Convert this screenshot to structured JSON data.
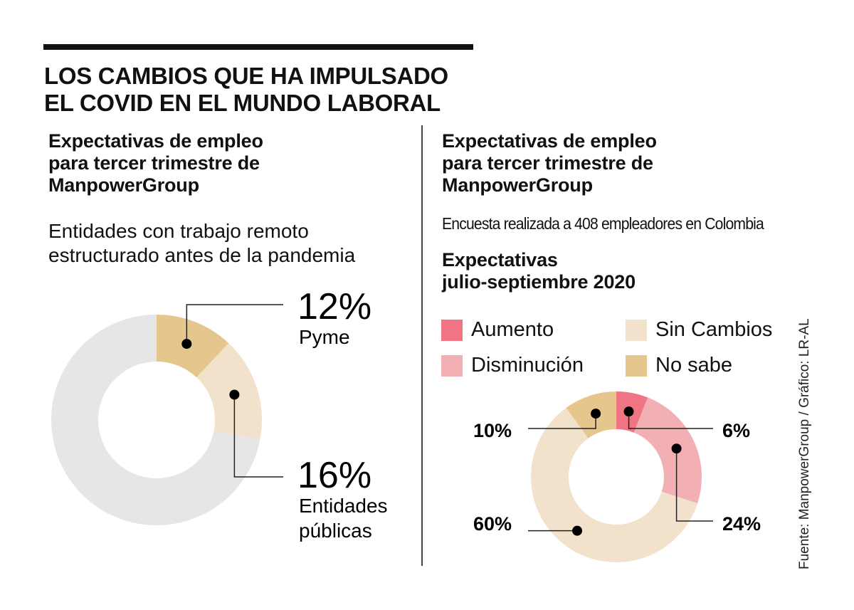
{
  "header": {
    "title_lines": [
      "LOS CAMBIOS QUE HA IMPULSADO",
      "EL COVID EN EL MUNDO LABORAL"
    ]
  },
  "left_panel": {
    "title_lines": [
      "Expectativas de empleo",
      "para tercer trimestre de",
      "ManpowerGroup"
    ],
    "description_lines": [
      "Entidades con trabajo remoto",
      "estructurado antes de la pandemia"
    ]
  },
  "right_panel": {
    "title_lines": [
      "Expectativas de empleo",
      "para tercer trimestre de",
      "ManpowerGroup"
    ],
    "description": "Encuesta realizada a 408 empleadores en Colombia",
    "chart_title_lines": [
      "Expectativas",
      "julio-septiembre 2020"
    ]
  },
  "source": "Fuente: ManpowerGroup / Gráfico: LR-AL",
  "chart_data": [
    {
      "type": "pie",
      "subtype": "donut",
      "title": "Entidades con trabajo remoto estructurado antes de la pandemia",
      "slices": [
        {
          "name": "Pyme",
          "value": 12,
          "label": "12%",
          "sublabel_lines": [
            "Pyme"
          ],
          "color": "#e5c78e"
        },
        {
          "name": "Entidades públicas",
          "value": 16,
          "label": "16%",
          "sublabel_lines": [
            "Entidades",
            "públicas"
          ],
          "color": "#f2e2cb"
        },
        {
          "name": "Resto",
          "value": 72,
          "label": "",
          "sublabel_lines": [],
          "color": "#e6e6e6"
        }
      ]
    },
    {
      "type": "pie",
      "subtype": "donut",
      "title": "Expectativas julio-septiembre 2020",
      "legend": [
        {
          "name": "Aumento",
          "color": "#f07484"
        },
        {
          "name": "Sin Cambios",
          "color": "#f2e2cc"
        },
        {
          "name": "Disminución",
          "color": "#f2afb4"
        },
        {
          "name": "No sabe",
          "color": "#e5c78e"
        }
      ],
      "legend_position": "top",
      "slices": [
        {
          "name": "Aumento",
          "value": 6,
          "label": "6%",
          "color": "#f07484"
        },
        {
          "name": "Disminución",
          "value": 24,
          "label": "24%",
          "color": "#f2afb4"
        },
        {
          "name": "Sin Cambios",
          "value": 60,
          "label": "60%",
          "color": "#f2e2cc"
        },
        {
          "name": "No sabe",
          "value": 10,
          "label": "10%",
          "color": "#e5c78e"
        }
      ]
    }
  ]
}
